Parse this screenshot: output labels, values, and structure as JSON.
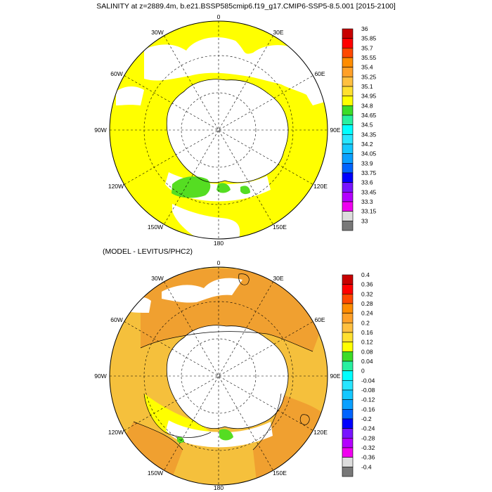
{
  "header": {
    "title": "SALINITY at z=2889.4m, b.e21.BSSP585cmip6.f19_g17.CMIP6-SSP5-8.5.001 [2015-2100]",
    "diff_title": "(MODEL - LEVITUS/PHC2)"
  },
  "map_labels": [
    "0",
    "30E",
    "60E",
    "90E",
    "120E",
    "150E",
    "180",
    "150W",
    "120W",
    "90W",
    "60W",
    "30W"
  ],
  "colors": {
    "land": "#ffffff",
    "yellow": "#ffff00",
    "green": "#55dd22",
    "orange_light": "#f5c03c",
    "orange": "#f0a030",
    "coast": "#000000",
    "grid": "#000000"
  },
  "colorbar_top": {
    "labels": [
      "36",
      "35.85",
      "35.7",
      "35.55",
      "35.4",
      "35.25",
      "35.1",
      "34.95",
      "34.8",
      "34.65",
      "34.5",
      "34.35",
      "34.2",
      "34.05",
      "33.9",
      "33.75",
      "33.6",
      "33.45",
      "33.3",
      "33.15",
      "33"
    ],
    "colors": [
      "#c80000",
      "#ff0000",
      "#ff4800",
      "#ff8c00",
      "#ffa028",
      "#ffc040",
      "#ffe030",
      "#ffff00",
      "#3cdc28",
      "#28f0a0",
      "#00ffff",
      "#28e6ff",
      "#14c8ff",
      "#0aa0ff",
      "#0064ff",
      "#0000ff",
      "#7814ff",
      "#b400ff",
      "#f000f0",
      "#dcdcdc",
      "#787878"
    ]
  },
  "colorbar_bottom": {
    "labels": [
      "0.4",
      "0.36",
      "0.32",
      "0.28",
      "0.24",
      "0.2",
      "0.16",
      "0.12",
      "0.08",
      "0.04",
      "0",
      "-0.04",
      "-0.08",
      "-0.12",
      "-0.16",
      "-0.2",
      "-0.24",
      "-0.28",
      "-0.32",
      "-0.36",
      "-0.4"
    ],
    "colors": [
      "#c80000",
      "#ff0000",
      "#ff4800",
      "#ff8c00",
      "#ffa028",
      "#ffc040",
      "#ffe030",
      "#ffff00",
      "#3cdc28",
      "#28f0a0",
      "#00ffff",
      "#28e6ff",
      "#14c8ff",
      "#0aa0ff",
      "#0064ff",
      "#0000ff",
      "#7814ff",
      "#b400ff",
      "#f000f0",
      "#dcdcdc",
      "#787878"
    ]
  }
}
